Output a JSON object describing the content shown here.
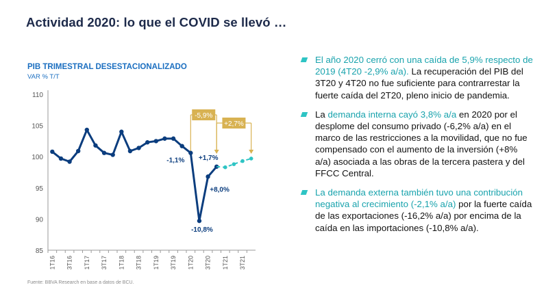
{
  "title": "Actividad 2020: lo que el COVID se llevó …",
  "chart": {
    "title": "PIB TRIMESTRAL DESESTACIONALIZADO",
    "subtitle": "VAR % T/T",
    "source": "Fuente: BBVA Research en base a datos de BCU."
  },
  "chart_data": {
    "type": "line",
    "ylim": [
      85,
      110
    ],
    "yticks": [
      85,
      90,
      95,
      100,
      105,
      110
    ],
    "x": [
      "1T16",
      "2T16",
      "3T16",
      "4T16",
      "1T17",
      "2T17",
      "3T17",
      "4T17",
      "1T18",
      "2T18",
      "3T18",
      "4T18",
      "1T19",
      "2T19",
      "3T19",
      "4T19",
      "1T20",
      "2T20",
      "3T20",
      "4T20",
      "1T21",
      "2T21",
      "3T21",
      "4T21"
    ],
    "xtick_labels": [
      "1T16",
      "",
      "3T16",
      "",
      "1T17",
      "",
      "3T17",
      "",
      "1T18",
      "",
      "3T18",
      "",
      "1T19",
      "",
      "3T19",
      "",
      "1T20",
      "",
      "3T20",
      "",
      "1T21",
      "",
      "3T21",
      ""
    ],
    "series": [
      {
        "values": [
          100.8,
          99.7,
          99.2,
          100.9,
          104.3,
          101.8,
          100.6,
          100.3,
          104.0,
          100.9,
          101.4,
          102.3,
          102.5,
          102.9,
          102.9,
          101.7,
          100.6,
          89.7,
          96.8,
          98.4,
          null,
          null,
          null,
          null
        ],
        "color": "#0b3d7e",
        "style": "solid"
      },
      {
        "values": [
          null,
          null,
          null,
          null,
          null,
          null,
          null,
          null,
          null,
          null,
          null,
          null,
          null,
          null,
          null,
          null,
          null,
          null,
          null,
          98.4,
          98.3,
          98.8,
          99.3,
          99.7
        ],
        "color": "#2ec4c4",
        "style": "dashed"
      }
    ],
    "point_labels": [
      {
        "x": "1T20",
        "text": "-1,1%"
      },
      {
        "x": "2T20",
        "text": "-10,8%"
      },
      {
        "x": "3T20",
        "text": "+8,0%"
      },
      {
        "x": "4T20",
        "text": "+1,7%"
      }
    ],
    "callouts": [
      {
        "from": "1T20",
        "to": "4T20",
        "text": "-5,9%"
      },
      {
        "from": "4T20",
        "to": "4T21",
        "text": "+2,7%"
      }
    ],
    "grid": false,
    "colors": {
      "actual": "#0b3d7e",
      "forecast": "#2ec4c4",
      "callout": "#d8b252",
      "label": "#0b3d7e"
    }
  },
  "bullets": [
    {
      "parts": [
        {
          "text": "El año 2020 cerró con una caída de 5,9% respecto de 2019 (4T20 -2,9% a/a).",
          "hl": true
        },
        {
          "text": " La recuperación del PIB del 3T20 y 4T20 no fue suficiente para contrarrestar la fuerte caída del 2T20, pleno inicio de pandemia.",
          "hl": false
        }
      ]
    },
    {
      "parts": [
        {
          "text": "La ",
          "hl": false
        },
        {
          "text": "demanda interna cayó 3,8% a/a",
          "hl": true
        },
        {
          "text": " en 2020 por el desplome del consumo privado (-6,2% a/a) en el marco de las restricciones a la movilidad, que no fue compensado con el aumento de la inversión (+8% a/a) asociada a las obras de la tercera pastera y del FFCC Central.",
          "hl": false
        }
      ]
    },
    {
      "parts": [
        {
          "text": "La demanda externa también tuvo una contribución negativa al crecimiento (-2,1% a/a)",
          "hl": true
        },
        {
          "text": " por la fuerte caída de las exportaciones (-16,2% a/a) por encima de la caída en las importaciones (-10,8% a/a).",
          "hl": false
        }
      ]
    }
  ]
}
